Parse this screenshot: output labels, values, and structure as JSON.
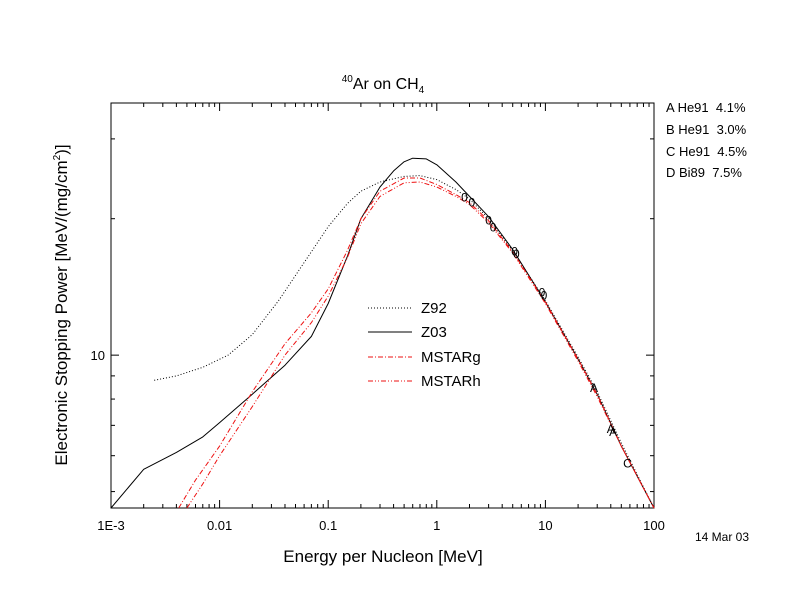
{
  "chart_data": {
    "type": "line",
    "title": {
      "sup": "40",
      "main": "Ar on CH",
      "sub": "4"
    },
    "xlabel": "Energy per Nucleon [MeV]",
    "ylabel": {
      "main": "Electronic Stopping Power [MeV/(mg/cm",
      "sup": "2",
      "end": ")]"
    },
    "x_scale": "log",
    "y_scale": "log",
    "xlim": [
      0.001,
      100
    ],
    "ylim": [
      4.6,
      36
    ],
    "x_ticks": [
      {
        "value": 0.001,
        "label": "1E-3"
      },
      {
        "value": 0.01,
        "label": "0.01"
      },
      {
        "value": 0.1,
        "label": "0.1"
      },
      {
        "value": 1,
        "label": "1"
      },
      {
        "value": 10,
        "label": "10"
      },
      {
        "value": 100,
        "label": "100"
      }
    ],
    "y_ticks": [
      {
        "value": 10,
        "label": "10"
      }
    ],
    "legend": {
      "placement": "center"
    },
    "series": [
      {
        "name": "Z92",
        "style": "dotted",
        "color": "#000000",
        "points": [
          [
            0.0025,
            8.8
          ],
          [
            0.004,
            9.0
          ],
          [
            0.007,
            9.4
          ],
          [
            0.012,
            10.0
          ],
          [
            0.02,
            11.1
          ],
          [
            0.035,
            13.2
          ],
          [
            0.06,
            16.0
          ],
          [
            0.1,
            19.2
          ],
          [
            0.15,
            21.6
          ],
          [
            0.2,
            23.0
          ],
          [
            0.3,
            24.1
          ],
          [
            0.5,
            24.8
          ],
          [
            0.7,
            24.9
          ],
          [
            1.0,
            24.4
          ],
          [
            1.5,
            23.2
          ],
          [
            2.0,
            22.1
          ],
          [
            3.0,
            20.0
          ],
          [
            5.0,
            17.0
          ],
          [
            10.0,
            13.2
          ],
          [
            20.0,
            9.9
          ],
          [
            30.0,
            8.3
          ],
          [
            50.0,
            6.4
          ],
          [
            100.0,
            4.6
          ]
        ]
      },
      {
        "name": "Z03",
        "style": "solid",
        "color": "#000000",
        "points": [
          [
            0.001,
            4.6
          ],
          [
            0.002,
            5.6
          ],
          [
            0.004,
            6.1
          ],
          [
            0.007,
            6.6
          ],
          [
            0.01,
            7.1
          ],
          [
            0.02,
            8.2
          ],
          [
            0.04,
            9.5
          ],
          [
            0.07,
            11.0
          ],
          [
            0.1,
            13.0
          ],
          [
            0.15,
            16.5
          ],
          [
            0.2,
            20.0
          ],
          [
            0.3,
            23.5
          ],
          [
            0.4,
            25.5
          ],
          [
            0.5,
            26.7
          ],
          [
            0.6,
            27.2
          ],
          [
            0.8,
            27.1
          ],
          [
            1.0,
            26.3
          ],
          [
            1.5,
            24.1
          ],
          [
            2.0,
            22.4
          ],
          [
            3.0,
            20.2
          ],
          [
            5.0,
            17.1
          ],
          [
            10.0,
            13.1
          ],
          [
            20.0,
            9.8
          ],
          [
            30.0,
            8.2
          ],
          [
            50.0,
            6.3
          ],
          [
            100.0,
            4.6
          ]
        ]
      },
      {
        "name": "MSTARg",
        "style": "dashdot",
        "color": "#ee1111",
        "points": [
          [
            0.0042,
            4.6
          ],
          [
            0.006,
            5.3
          ],
          [
            0.01,
            6.3
          ],
          [
            0.02,
            8.3
          ],
          [
            0.04,
            10.6
          ],
          [
            0.07,
            12.4
          ],
          [
            0.1,
            14.0
          ],
          [
            0.15,
            17.0
          ],
          [
            0.2,
            20.0
          ],
          [
            0.3,
            23.0
          ],
          [
            0.5,
            24.6
          ],
          [
            0.7,
            24.6
          ],
          [
            1.0,
            23.8
          ],
          [
            1.5,
            22.6
          ],
          [
            2.0,
            21.7
          ],
          [
            3.0,
            19.8
          ],
          [
            5.0,
            16.9
          ],
          [
            10.0,
            13.1
          ],
          [
            20.0,
            9.8
          ],
          [
            30.0,
            8.2
          ],
          [
            50.0,
            6.3
          ],
          [
            100.0,
            4.6
          ]
        ]
      },
      {
        "name": "MSTARh",
        "style": "dashdotdot",
        "color": "#ee1111",
        "points": [
          [
            0.005,
            4.6
          ],
          [
            0.007,
            5.2
          ],
          [
            0.01,
            6.0
          ],
          [
            0.02,
            7.7
          ],
          [
            0.04,
            10.0
          ],
          [
            0.07,
            11.8
          ],
          [
            0.1,
            13.5
          ],
          [
            0.15,
            16.4
          ],
          [
            0.2,
            19.5
          ],
          [
            0.3,
            22.4
          ],
          [
            0.5,
            24.0
          ],
          [
            0.7,
            24.1
          ],
          [
            1.0,
            23.5
          ],
          [
            1.5,
            22.4
          ],
          [
            2.0,
            21.5
          ],
          [
            3.0,
            19.6
          ],
          [
            5.0,
            16.8
          ],
          [
            10.0,
            13.0
          ],
          [
            20.0,
            9.7
          ],
          [
            30.0,
            8.1
          ],
          [
            50.0,
            6.3
          ],
          [
            100.0,
            4.6
          ]
        ]
      }
    ],
    "markers": [
      {
        "label": "0",
        "points": [
          [
            1.8,
            22.4
          ],
          [
            2.1,
            21.8
          ],
          [
            3.0,
            19.9
          ],
          [
            3.3,
            19.2
          ],
          [
            5.2,
            17.0
          ],
          [
            5.4,
            16.8
          ],
          [
            9.3,
            13.8
          ],
          [
            9.7,
            13.6
          ]
        ]
      },
      {
        "label": "A",
        "points": [
          [
            28.0,
            8.5
          ],
          [
            40.0,
            6.9
          ],
          [
            42.0,
            6.8
          ]
        ]
      },
      {
        "label": "C",
        "points": [
          [
            57.0,
            5.8
          ]
        ]
      }
    ],
    "annotations": [
      "A He91  4.1%",
      "B He91  3.0%",
      "C He91  4.5%",
      "D Bi89  7.5%"
    ],
    "date": "14 Mar 03"
  }
}
